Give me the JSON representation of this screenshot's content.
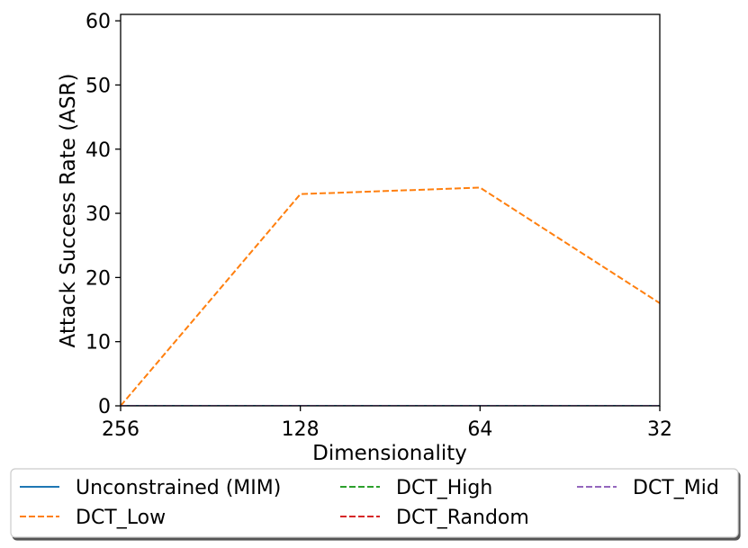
{
  "chart_data": {
    "type": "line",
    "title": "",
    "xlabel": "Dimensionality",
    "ylabel": "Attack Success Rate (ASR)",
    "categories": [
      "256",
      "128",
      "64",
      "32"
    ],
    "ylim": [
      0,
      61
    ],
    "yticks": [
      0,
      10,
      20,
      30,
      40,
      50,
      60
    ],
    "grid": false,
    "legend": {
      "placement": "bottom",
      "columns": 3
    },
    "series": [
      {
        "name": "Unconstrained (MIM)",
        "values": [
          0,
          0,
          0,
          0
        ],
        "color": "#1f77b4",
        "dashed": false
      },
      {
        "name": "DCT_Low",
        "values": [
          0,
          33,
          34,
          16
        ],
        "color": "#ff7f0e",
        "dashed": true
      },
      {
        "name": "DCT_High",
        "values": [
          0,
          0,
          0,
          0
        ],
        "color": "#2ca02c",
        "dashed": true
      },
      {
        "name": "DCT_Random",
        "values": [
          0,
          0,
          0,
          0
        ],
        "color": "#d62728",
        "dashed": true
      },
      {
        "name": "DCT_Mid",
        "values": [
          0,
          0,
          0,
          0
        ],
        "color": "#9467bd",
        "dashed": true
      }
    ]
  }
}
